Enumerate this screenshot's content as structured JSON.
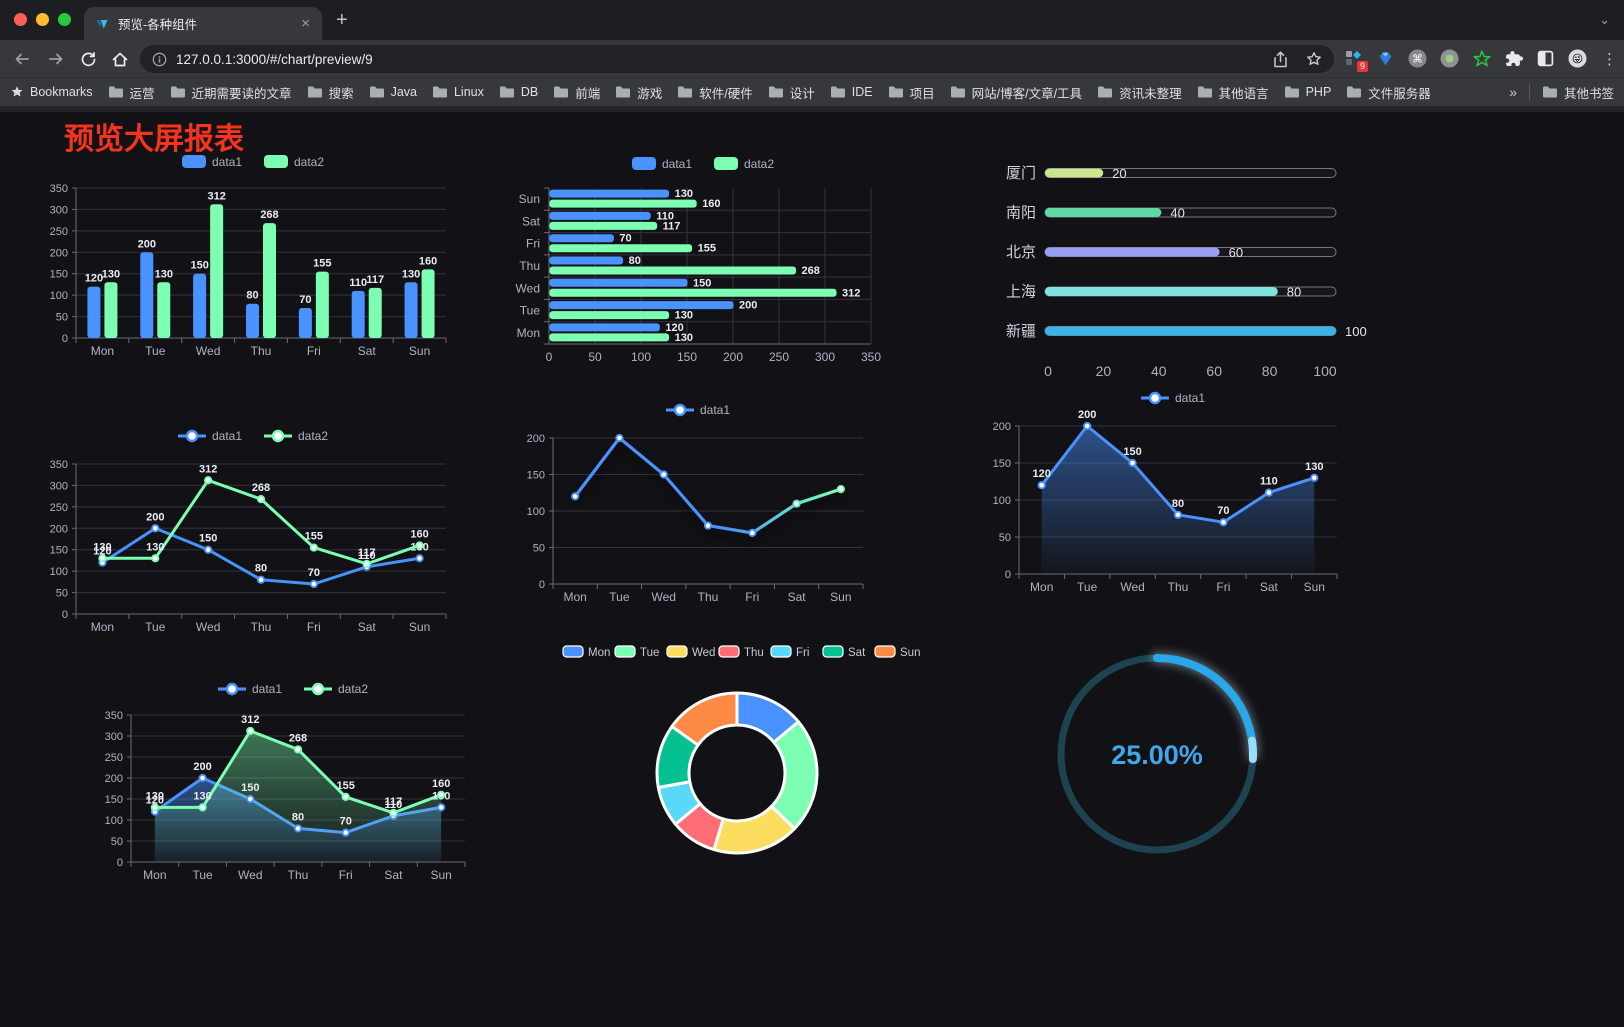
{
  "browser": {
    "tab": {
      "title": "预览-各种组件",
      "close_glyph": "×"
    },
    "new_tab_label": "+",
    "url": "127.0.0.1:3000/#/chart/preview/9",
    "extensions": {
      "badge": "9"
    },
    "bookmarks": {
      "star_label": "Bookmarks",
      "items": [
        "运营",
        "近期需要读的文章",
        "搜索",
        "Java",
        "Linux",
        "DB",
        "前端",
        "游戏",
        "软件/硬件",
        "设计",
        "IDE",
        "项目",
        "网站/博客/文章/工具",
        "资讯未整理",
        "其他语言",
        "PHP",
        "文件服务器"
      ],
      "overflow": "»",
      "other_label": "其他书签"
    }
  },
  "page": {
    "title": "预览大屏报表",
    "title_color": "#f5331f",
    "background": "#121216"
  },
  "theme": {
    "series_blue": "#4992ff",
    "series_green": "#7cffb2",
    "axis": "#6b6a76",
    "grid": "#333340",
    "tick_label": "#b2b1c4",
    "value_label": "#ebebf4"
  },
  "chart_data": [
    {
      "id": "bar-grouped",
      "type": "bar",
      "title": "",
      "legend_position": "top",
      "categories": [
        "Mon",
        "Tue",
        "Wed",
        "Thu",
        "Fri",
        "Sat",
        "Sun"
      ],
      "series": [
        {
          "name": "data1",
          "color": "#4992ff",
          "values": [
            120,
            200,
            150,
            80,
            70,
            110,
            130
          ]
        },
        {
          "name": "data2",
          "color": "#7cffb2",
          "values": [
            130,
            130,
            312,
            268,
            155,
            117,
            160
          ]
        }
      ],
      "ylim": [
        0,
        350
      ],
      "ytick": 50,
      "grid": true,
      "data_labels": true
    },
    {
      "id": "bar-horizontal",
      "type": "bar",
      "orientation": "horizontal",
      "legend_position": "top",
      "categories_top_to_bottom": [
        "Sun",
        "Sat",
        "Fri",
        "Thu",
        "Wed",
        "Tue",
        "Mon"
      ],
      "series": [
        {
          "name": "data1",
          "color": "#4992ff",
          "values": [
            120,
            200,
            150,
            80,
            70,
            110,
            130
          ]
        },
        {
          "name": "data2",
          "color": "#7cffb2",
          "values": [
            130,
            130,
            312,
            268,
            155,
            117,
            160
          ]
        }
      ],
      "series_category_order": [
        "Mon",
        "Tue",
        "Wed",
        "Thu",
        "Fri",
        "Sat",
        "Sun"
      ],
      "xlim": [
        0,
        350
      ],
      "xtick": 50,
      "grid": true,
      "data_labels": true
    },
    {
      "id": "progress-bars",
      "type": "bar",
      "orientation": "horizontal-progress",
      "items": [
        {
          "label": "厦门",
          "value": 20,
          "color": "#cbe690"
        },
        {
          "label": "南阳",
          "value": 40,
          "color": "#5fd9a6"
        },
        {
          "label": "北京",
          "value": 60,
          "color": "#989ef0"
        },
        {
          "label": "上海",
          "value": 80,
          "color": "#82e2df"
        },
        {
          "label": "新疆",
          "value": 100,
          "color": "#3ab3e8"
        }
      ],
      "xlim": [
        0,
        100
      ],
      "xticks": [
        0,
        20,
        40,
        60,
        80,
        100
      ]
    },
    {
      "id": "line-two-series",
      "type": "line",
      "legend_position": "top",
      "categories": [
        "Mon",
        "Tue",
        "Wed",
        "Thu",
        "Fri",
        "Sat",
        "Sun"
      ],
      "series": [
        {
          "name": "data1",
          "color": "#4992ff",
          "values": [
            120,
            200,
            150,
            80,
            70,
            110,
            130
          ]
        },
        {
          "name": "data2",
          "color": "#7cffb2",
          "values": [
            130,
            130,
            312,
            268,
            155,
            117,
            160
          ]
        }
      ],
      "ylim": [
        0,
        350
      ],
      "ytick": 50,
      "grid": true,
      "data_labels": true
    },
    {
      "id": "line-gradient",
      "type": "line",
      "legend_position": "top",
      "categories": [
        "Mon",
        "Tue",
        "Wed",
        "Thu",
        "Fri",
        "Sat",
        "Sun"
      ],
      "series": [
        {
          "name": "data1",
          "gradient": [
            "#4992ff",
            "#7cffb2"
          ],
          "color": "#4992ff",
          "values": [
            120,
            200,
            150,
            80,
            70,
            110,
            130
          ]
        }
      ],
      "ylim": [
        0,
        200
      ],
      "ytick": 50,
      "grid": true,
      "data_labels": false,
      "shadow": true
    },
    {
      "id": "area-single",
      "type": "area",
      "legend_position": "top",
      "categories": [
        "Mon",
        "Tue",
        "Wed",
        "Thu",
        "Fri",
        "Sat",
        "Sun"
      ],
      "series": [
        {
          "name": "data1",
          "color": "#4992ff",
          "values": [
            120,
            200,
            150,
            80,
            70,
            110,
            130
          ]
        }
      ],
      "ylim": [
        0,
        200
      ],
      "ytick": 50,
      "grid": true,
      "data_labels": true
    },
    {
      "id": "area-two-series",
      "type": "area",
      "legend_position": "top",
      "categories": [
        "Mon",
        "Tue",
        "Wed",
        "Thu",
        "Fri",
        "Sat",
        "Sun"
      ],
      "series": [
        {
          "name": "data1",
          "color": "#4992ff",
          "values": [
            120,
            200,
            150,
            80,
            70,
            110,
            130
          ]
        },
        {
          "name": "data2",
          "color": "#7cffb2",
          "values": [
            130,
            130,
            312,
            268,
            155,
            117,
            160
          ]
        }
      ],
      "ylim": [
        0,
        350
      ],
      "ytick": 50,
      "grid": true,
      "data_labels": true
    },
    {
      "id": "donut",
      "type": "pie",
      "inner_radius_ratio": 0.6,
      "legend_position": "top",
      "slices": [
        {
          "label": "Mon",
          "value": 120,
          "color": "#4992ff"
        },
        {
          "label": "Tue",
          "value": 200,
          "color": "#7cffb2"
        },
        {
          "label": "Wed",
          "value": 150,
          "color": "#fddd60"
        },
        {
          "label": "Thu",
          "value": 80,
          "color": "#ff6e76"
        },
        {
          "label": "Fri",
          "value": 70,
          "color": "#58d9f9"
        },
        {
          "label": "Sat",
          "value": 110,
          "color": "#05c091"
        },
        {
          "label": "Sun",
          "value": 130,
          "color": "#ff8a45"
        }
      ]
    },
    {
      "id": "gauge",
      "type": "gauge",
      "value": 25,
      "display": "25.00%",
      "color": "#2aa7e8",
      "end_cap_color": "#9adcfa",
      "track_color": "#1d4350",
      "text_color": "#3fa7ea"
    }
  ]
}
